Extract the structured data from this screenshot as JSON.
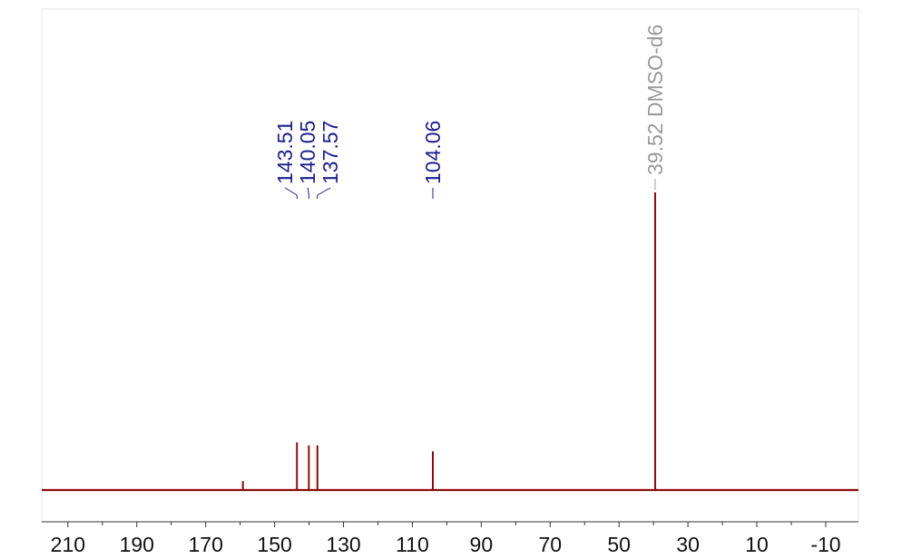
{
  "chart_data": {
    "type": "spectrum",
    "x": [
      159.2,
      143.51,
      140.05,
      137.57,
      104.06,
      39.52
    ],
    "values": [
      3,
      16,
      15,
      15,
      13,
      100
    ],
    "peak_labels": [
      null,
      "143.51",
      "140.05",
      "137.57",
      "104.06",
      "39.52 DMSO-d6"
    ],
    "label_colors": [
      null,
      "#1b1f8a",
      "#1b1f8a",
      "#1b1f8a",
      "#1b1f8a",
      "#9a9a9a"
    ],
    "color": "#8b0a0a",
    "xlim": [
      217.6,
      -19.5
    ],
    "ylim": [
      0,
      100
    ],
    "xticks": [
      210,
      190,
      170,
      150,
      130,
      110,
      90,
      70,
      50,
      30,
      10,
      -10
    ],
    "xticks_minor": [
      200,
      180,
      160,
      140,
      120,
      100,
      80,
      60,
      40,
      20,
      0
    ]
  }
}
